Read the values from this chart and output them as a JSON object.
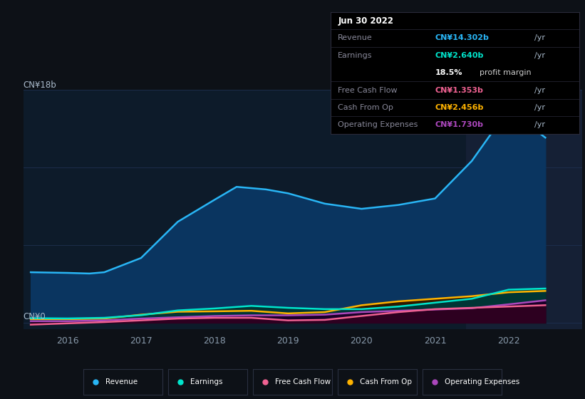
{
  "bg_color": "#0d1117",
  "plot_bg_color": "#0d1b2a",
  "highlight_bg_color": "#152035",
  "grid_color": "#1e3050",
  "title_date": "Jun 30 2022",
  "y_label_top": "CN¥18b",
  "y_label_bottom": "CN¥0",
  "x_ticks": [
    2016,
    2017,
    2018,
    2019,
    2020,
    2021,
    2022
  ],
  "highlight_x_start": 2021.42,
  "highlight_x_end": 2023.0,
  "series": {
    "Revenue": {
      "color": "#29b6f6",
      "fill_color": "#0a3560",
      "x": [
        2015.5,
        2016.0,
        2016.3,
        2016.5,
        2017.0,
        2017.5,
        2018.0,
        2018.3,
        2018.7,
        2019.0,
        2019.5,
        2020.0,
        2020.5,
        2021.0,
        2021.5,
        2022.0,
        2022.5
      ],
      "y": [
        3.9,
        3.85,
        3.8,
        3.9,
        5.0,
        7.8,
        9.5,
        10.5,
        10.3,
        10.0,
        9.2,
        8.8,
        9.1,
        9.6,
        12.5,
        16.5,
        14.302
      ]
    },
    "Earnings": {
      "color": "#00e5cc",
      "fill_color": "#003535",
      "x": [
        2015.5,
        2016.0,
        2016.5,
        2017.0,
        2017.5,
        2018.0,
        2018.5,
        2019.0,
        2019.5,
        2020.0,
        2020.5,
        2021.0,
        2021.5,
        2022.0,
        2022.5
      ],
      "y": [
        0.35,
        0.33,
        0.38,
        0.58,
        0.95,
        1.1,
        1.3,
        1.15,
        1.05,
        1.05,
        1.25,
        1.55,
        1.85,
        2.55,
        2.64
      ]
    },
    "Free Cash Flow": {
      "color": "#f06292",
      "fill_color": "#2d0020",
      "x": [
        2015.5,
        2016.0,
        2016.5,
        2017.0,
        2017.5,
        2018.0,
        2018.5,
        2019.0,
        2019.5,
        2020.0,
        2020.5,
        2021.0,
        2021.5,
        2022.0,
        2022.5
      ],
      "y": [
        -0.15,
        -0.05,
        0.05,
        0.18,
        0.32,
        0.38,
        0.38,
        0.18,
        0.22,
        0.52,
        0.82,
        1.05,
        1.15,
        1.25,
        1.353
      ]
    },
    "Cash From Op": {
      "color": "#ffb300",
      "fill_color": "#2d1800",
      "x": [
        2015.5,
        2016.0,
        2016.5,
        2017.0,
        2017.5,
        2018.0,
        2018.5,
        2019.0,
        2019.5,
        2020.0,
        2020.5,
        2021.0,
        2021.5,
        2022.0,
        2022.5
      ],
      "y": [
        0.28,
        0.28,
        0.32,
        0.62,
        0.85,
        0.88,
        0.92,
        0.72,
        0.82,
        1.35,
        1.65,
        1.85,
        2.05,
        2.35,
        2.456
      ]
    },
    "Operating Expenses": {
      "color": "#ab47bc",
      "fill_color": "#1a0028",
      "x": [
        2015.5,
        2016.0,
        2016.5,
        2017.0,
        2017.5,
        2018.0,
        2018.5,
        2019.0,
        2019.5,
        2020.0,
        2020.5,
        2021.0,
        2021.5,
        2022.0,
        2022.5
      ],
      "y": [
        0.12,
        0.12,
        0.18,
        0.32,
        0.42,
        0.52,
        0.57,
        0.57,
        0.62,
        0.82,
        0.92,
        1.02,
        1.12,
        1.42,
        1.73
      ]
    }
  },
  "legend_items": [
    {
      "label": "Revenue",
      "color": "#29b6f6"
    },
    {
      "label": "Earnings",
      "color": "#00e5cc"
    },
    {
      "label": "Free Cash Flow",
      "color": "#f06292"
    },
    {
      "label": "Cash From Op",
      "color": "#ffb300"
    },
    {
      "label": "Operating Expenses",
      "color": "#ab47bc"
    }
  ],
  "table": {
    "bg": "#000000",
    "border": "#2a2a3a",
    "title": "Jun 30 2022",
    "title_color": "#ffffff",
    "label_color": "#888899",
    "rows": [
      {
        "label": "Revenue",
        "value": "CN¥14.302b",
        "vcolor": "#29b6f6",
        "extra": null,
        "ecolor": null
      },
      {
        "label": "Earnings",
        "value": "CN¥2.640b",
        "vcolor": "#00e5cc",
        "extra": "18.5% profit margin",
        "ecolor": "#ffffff"
      },
      {
        "label": "Free Cash Flow",
        "value": "CN¥1.353b",
        "vcolor": "#f06292",
        "extra": null,
        "ecolor": null
      },
      {
        "label": "Cash From Op",
        "value": "CN¥2.456b",
        "vcolor": "#ffb300",
        "extra": null,
        "ecolor": null
      },
      {
        "label": "Operating Expenses",
        "value": "CN¥1.730b",
        "vcolor": "#ab47bc",
        "extra": null,
        "ecolor": null
      }
    ]
  },
  "ylim": [
    -0.5,
    18.0
  ],
  "xlim": [
    2015.4,
    2023.0
  ]
}
